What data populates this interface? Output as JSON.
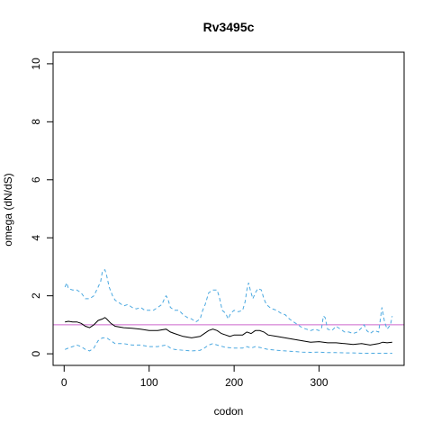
{
  "chart_data": {
    "type": "line",
    "title": "Rv3495c",
    "xlabel": "codon",
    "ylabel": "omega (dN/dS)",
    "xlim": [
      -13,
      400
    ],
    "ylim": [
      -0.4,
      10.4
    ],
    "xticks": [
      0,
      100,
      200,
      300
    ],
    "yticks": [
      0,
      2,
      4,
      6,
      8,
      10
    ],
    "grid": false,
    "legend": "none",
    "reference_line": {
      "y": 1,
      "color": "#cc66cc"
    },
    "series": [
      {
        "role": "upper",
        "color": "#4aa8e0",
        "dash": true,
        "points": [
          [
            1,
            2.3
          ],
          [
            3,
            2.45
          ],
          [
            5,
            2.25
          ],
          [
            10,
            2.2
          ],
          [
            15,
            2.2
          ],
          [
            20,
            2.1
          ],
          [
            25,
            1.9
          ],
          [
            30,
            1.9
          ],
          [
            35,
            2.0
          ],
          [
            40,
            2.3
          ],
          [
            43,
            2.5
          ],
          [
            45,
            2.85
          ],
          [
            48,
            2.9
          ],
          [
            50,
            2.7
          ],
          [
            53,
            2.3
          ],
          [
            57,
            2.0
          ],
          [
            60,
            1.85
          ],
          [
            65,
            1.75
          ],
          [
            70,
            1.65
          ],
          [
            75,
            1.7
          ],
          [
            80,
            1.6
          ],
          [
            85,
            1.55
          ],
          [
            90,
            1.6
          ],
          [
            95,
            1.5
          ],
          [
            100,
            1.5
          ],
          [
            105,
            1.5
          ],
          [
            110,
            1.6
          ],
          [
            115,
            1.7
          ],
          [
            118,
            1.9
          ],
          [
            120,
            2.0
          ],
          [
            122,
            1.9
          ],
          [
            125,
            1.6
          ],
          [
            130,
            1.5
          ],
          [
            135,
            1.5
          ],
          [
            140,
            1.35
          ],
          [
            145,
            1.25
          ],
          [
            150,
            1.2
          ],
          [
            155,
            1.1
          ],
          [
            160,
            1.2
          ],
          [
            163,
            1.5
          ],
          [
            166,
            1.7
          ],
          [
            170,
            2.1
          ],
          [
            175,
            2.2
          ],
          [
            180,
            2.2
          ],
          [
            183,
            1.9
          ],
          [
            186,
            1.5
          ],
          [
            190,
            1.4
          ],
          [
            193,
            1.2
          ],
          [
            196,
            1.4
          ],
          [
            200,
            1.5
          ],
          [
            205,
            1.45
          ],
          [
            210,
            1.5
          ],
          [
            213,
            1.8
          ],
          [
            215,
            2.2
          ],
          [
            217,
            2.45
          ],
          [
            219,
            2.2
          ],
          [
            222,
            1.9
          ],
          [
            225,
            2.1
          ],
          [
            228,
            2.25
          ],
          [
            232,
            2.2
          ],
          [
            235,
            1.9
          ],
          [
            238,
            1.7
          ],
          [
            242,
            1.6
          ],
          [
            245,
            1.55
          ],
          [
            250,
            1.5
          ],
          [
            255,
            1.4
          ],
          [
            260,
            1.35
          ],
          [
            265,
            1.2
          ],
          [
            270,
            1.1
          ],
          [
            275,
            1.0
          ],
          [
            280,
            0.9
          ],
          [
            285,
            0.85
          ],
          [
            290,
            0.8
          ],
          [
            295,
            0.85
          ],
          [
            300,
            0.8
          ],
          [
            303,
            0.9
          ],
          [
            305,
            1.3
          ],
          [
            307,
            1.25
          ],
          [
            310,
            0.85
          ],
          [
            315,
            0.8
          ],
          [
            320,
            0.95
          ],
          [
            325,
            0.85
          ],
          [
            330,
            0.75
          ],
          [
            335,
            0.75
          ],
          [
            340,
            0.7
          ],
          [
            345,
            0.75
          ],
          [
            350,
            0.9
          ],
          [
            353,
            1.0
          ],
          [
            356,
            0.8
          ],
          [
            360,
            0.7
          ],
          [
            365,
            0.8
          ],
          [
            370,
            0.75
          ],
          [
            374,
            1.6
          ],
          [
            377,
            1.1
          ],
          [
            380,
            0.85
          ],
          [
            384,
            1.0
          ],
          [
            386,
            1.3
          ]
        ]
      },
      {
        "role": "estimate",
        "color": "#000000",
        "dash": false,
        "points": [
          [
            1,
            1.1
          ],
          [
            5,
            1.12
          ],
          [
            10,
            1.1
          ],
          [
            15,
            1.1
          ],
          [
            20,
            1.05
          ],
          [
            25,
            0.95
          ],
          [
            30,
            0.9
          ],
          [
            35,
            1.0
          ],
          [
            40,
            1.15
          ],
          [
            45,
            1.2
          ],
          [
            48,
            1.25
          ],
          [
            50,
            1.2
          ],
          [
            55,
            1.05
          ],
          [
            60,
            0.95
          ],
          [
            70,
            0.9
          ],
          [
            80,
            0.88
          ],
          [
            90,
            0.85
          ],
          [
            100,
            0.8
          ],
          [
            110,
            0.8
          ],
          [
            120,
            0.85
          ],
          [
            125,
            0.75
          ],
          [
            130,
            0.7
          ],
          [
            140,
            0.6
          ],
          [
            150,
            0.55
          ],
          [
            160,
            0.6
          ],
          [
            165,
            0.7
          ],
          [
            170,
            0.8
          ],
          [
            175,
            0.85
          ],
          [
            180,
            0.8
          ],
          [
            185,
            0.7
          ],
          [
            190,
            0.65
          ],
          [
            195,
            0.6
          ],
          [
            200,
            0.65
          ],
          [
            210,
            0.65
          ],
          [
            215,
            0.75
          ],
          [
            220,
            0.7
          ],
          [
            225,
            0.8
          ],
          [
            230,
            0.8
          ],
          [
            235,
            0.75
          ],
          [
            240,
            0.65
          ],
          [
            250,
            0.6
          ],
          [
            260,
            0.55
          ],
          [
            270,
            0.5
          ],
          [
            280,
            0.45
          ],
          [
            290,
            0.4
          ],
          [
            300,
            0.42
          ],
          [
            310,
            0.38
          ],
          [
            320,
            0.38
          ],
          [
            330,
            0.35
          ],
          [
            340,
            0.32
          ],
          [
            350,
            0.35
          ],
          [
            360,
            0.3
          ],
          [
            370,
            0.35
          ],
          [
            375,
            0.4
          ],
          [
            380,
            0.38
          ],
          [
            386,
            0.4
          ]
        ]
      },
      {
        "role": "lower",
        "color": "#4aa8e0",
        "dash": true,
        "points": [
          [
            1,
            0.15
          ],
          [
            5,
            0.2
          ],
          [
            10,
            0.25
          ],
          [
            15,
            0.3
          ],
          [
            20,
            0.25
          ],
          [
            25,
            0.15
          ],
          [
            30,
            0.1
          ],
          [
            35,
            0.2
          ],
          [
            40,
            0.45
          ],
          [
            45,
            0.55
          ],
          [
            50,
            0.55
          ],
          [
            55,
            0.45
          ],
          [
            60,
            0.35
          ],
          [
            70,
            0.35
          ],
          [
            80,
            0.3
          ],
          [
            90,
            0.3
          ],
          [
            100,
            0.25
          ],
          [
            110,
            0.25
          ],
          [
            120,
            0.3
          ],
          [
            125,
            0.2
          ],
          [
            130,
            0.15
          ],
          [
            140,
            0.12
          ],
          [
            150,
            0.1
          ],
          [
            160,
            0.12
          ],
          [
            165,
            0.2
          ],
          [
            170,
            0.3
          ],
          [
            175,
            0.35
          ],
          [
            180,
            0.3
          ],
          [
            190,
            0.22
          ],
          [
            200,
            0.2
          ],
          [
            210,
            0.2
          ],
          [
            215,
            0.25
          ],
          [
            220,
            0.2
          ],
          [
            225,
            0.25
          ],
          [
            230,
            0.22
          ],
          [
            240,
            0.15
          ],
          [
            250,
            0.12
          ],
          [
            260,
            0.1
          ],
          [
            270,
            0.08
          ],
          [
            280,
            0.06
          ],
          [
            290,
            0.05
          ],
          [
            300,
            0.06
          ],
          [
            310,
            0.04
          ],
          [
            320,
            0.04
          ],
          [
            330,
            0.03
          ],
          [
            340,
            0.03
          ],
          [
            350,
            0.02
          ],
          [
            360,
            0.02
          ],
          [
            370,
            0.02
          ],
          [
            380,
            0.02
          ],
          [
            386,
            0.02
          ]
        ]
      }
    ]
  }
}
